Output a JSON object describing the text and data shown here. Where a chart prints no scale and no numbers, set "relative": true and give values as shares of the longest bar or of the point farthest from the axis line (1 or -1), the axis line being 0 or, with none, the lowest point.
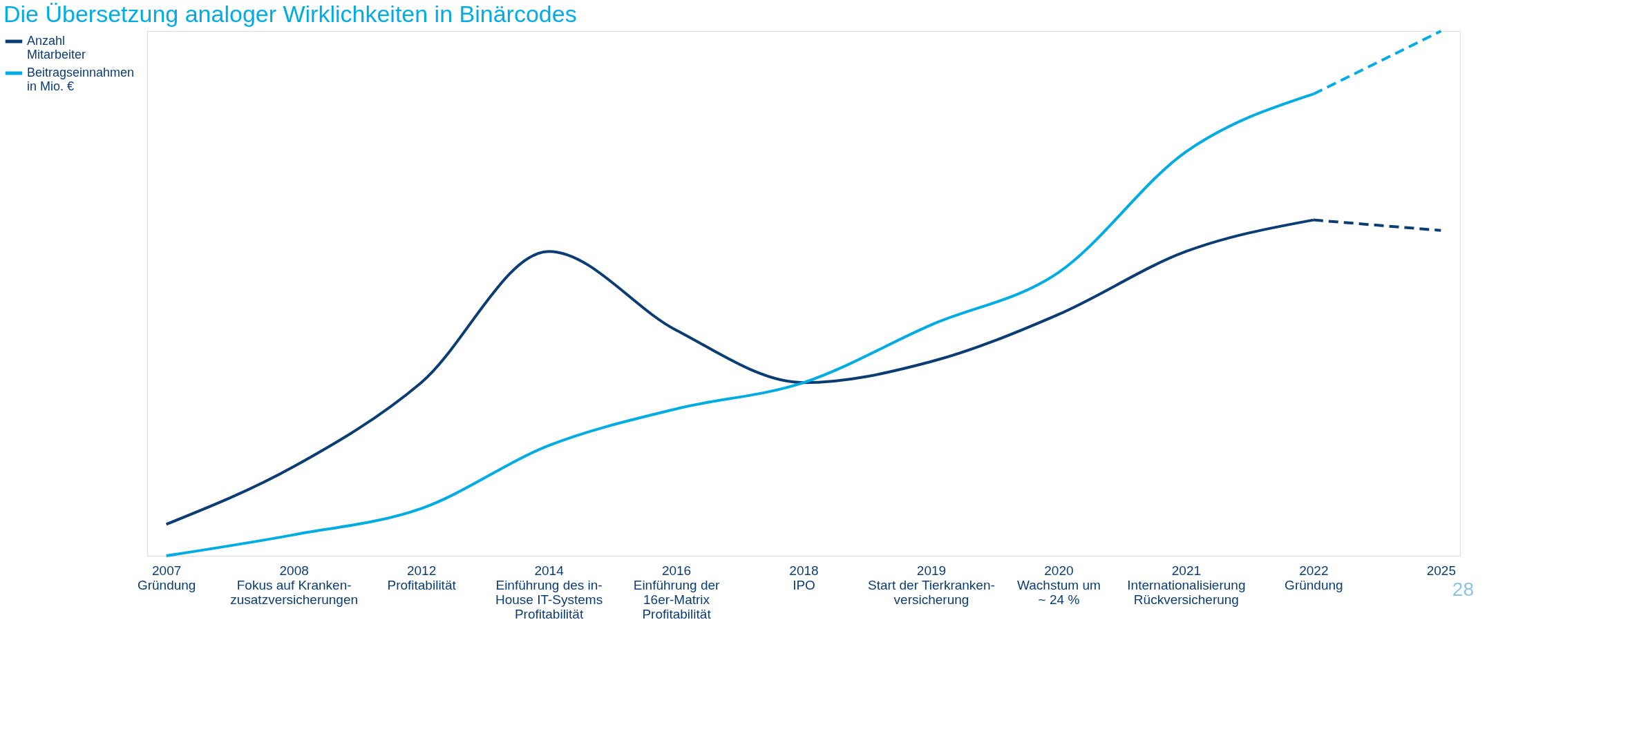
{
  "chart_data": {
    "type": "line",
    "title": "Die Übersetzung analoger Wirklichkeiten in Binärcodes",
    "relative": true,
    "legend": "left",
    "grid": false,
    "categories": [
      "2007\nGründung",
      "2008\nFokus auf Kranken-\nzusatzversicherungen",
      "2012\nProfitabilität",
      "2014\nEinführung des in-\nHouse IT-Systems\nProfitabilität",
      "2016\nEinführung der\n16er-Matrix\nProfitabilität",
      "2018\nIPO",
      "2019\nStart der Tierkranken-\nversicherung",
      "2020\nWachstum um\n~ 24 %",
      "2021\nInternationalisierung\nRückversicherung",
      "2022\nGründung",
      "2025"
    ],
    "series": [
      {
        "name": "Anzahl\nMitarbeiter",
        "color": "#0b3d73",
        "line_style": "solid",
        "values": [
          0.06,
          0.17,
          0.33,
          0.58,
          0.43,
          0.33,
          0.37,
          0.46,
          0.58,
          0.64,
          null
        ]
      },
      {
        "name": "Beitragseinnahmen\nin Mio. €",
        "color": "#00ace2",
        "line_style": "solid",
        "values": [
          0.0,
          0.04,
          0.09,
          0.21,
          0.28,
          0.33,
          0.44,
          0.54,
          0.77,
          0.88,
          null
        ]
      },
      {
        "color": "#0b3d73",
        "line_style": "dashed",
        "values": [
          null,
          null,
          null,
          null,
          null,
          null,
          null,
          null,
          null,
          0.64,
          0.62
        ]
      },
      {
        "color": "#00ace2",
        "line_style": "dashed",
        "values": [
          null,
          null,
          null,
          null,
          null,
          null,
          null,
          null,
          null,
          0.88,
          1.0
        ]
      }
    ],
    "annotations": [
      "28"
    ]
  }
}
